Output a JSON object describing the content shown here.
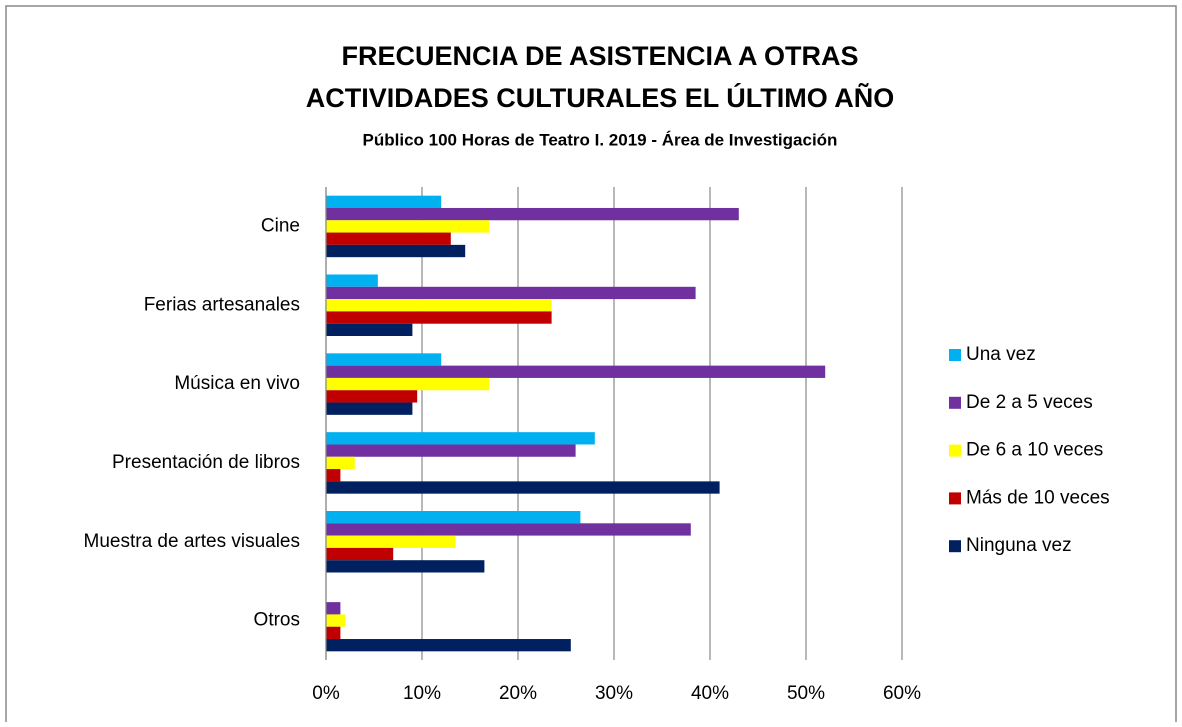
{
  "chart_data": {
    "type": "hbar",
    "title": [
      "FRECUENCIA DE ASISTENCIA A OTRAS",
      "ACTIVIDADES CULTURALES EL ÚLTIMO AÑO"
    ],
    "subtitle": "Público 100 Horas de Teatro I. 2019 - Área de Investigación",
    "categories": [
      "Cine",
      "Ferias artesanales",
      "Música en vivo",
      "Presentación de libros",
      "Muestra de artes visuales",
      "Otros"
    ],
    "series": [
      {
        "name": "Una vez",
        "color": "#00b0f0",
        "values": [
          12,
          5.4,
          12,
          28,
          26.5,
          0
        ]
      },
      {
        "name": "De 2 a 5 veces",
        "color": "#7030a0",
        "values": [
          43,
          38.5,
          52,
          26,
          38,
          1.5
        ]
      },
      {
        "name": "De 6 a 10 veces",
        "color": "#ffff00",
        "values": [
          17,
          23.5,
          17,
          3,
          13.5,
          2
        ]
      },
      {
        "name": "Más de 10 veces",
        "color": "#c00000",
        "values": [
          13,
          23.5,
          9.5,
          1.5,
          7,
          1.5
        ]
      },
      {
        "name": "Ninguna vez",
        "color": "#002060",
        "values": [
          14.5,
          9,
          9,
          41,
          16.5,
          25.5
        ]
      }
    ],
    "xlim": [
      0,
      60
    ],
    "xticks": [
      {
        "value": 0,
        "label": "0%"
      },
      {
        "value": 10,
        "label": "10%"
      },
      {
        "value": 20,
        "label": "20%"
      },
      {
        "value": 30,
        "label": "30%"
      },
      {
        "value": 40,
        "label": "40%"
      },
      {
        "value": 50,
        "label": "50%"
      },
      {
        "value": 60,
        "label": "60%"
      }
    ],
    "grid": true,
    "legend": "right"
  }
}
